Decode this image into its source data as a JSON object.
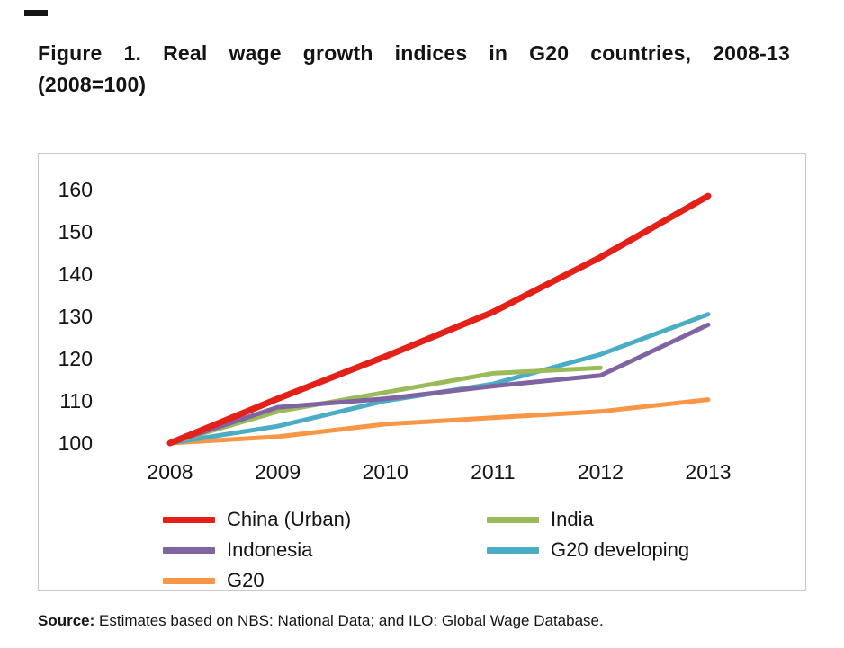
{
  "header": {
    "title_line1": "Figure 1. Real wage growth indices in G20 countries, 2008-13",
    "title_line2": "(2008=100)"
  },
  "chart_data": {
    "type": "line",
    "title": "Figure 1. Real wage growth indices in G20 countries, 2008-13 (2008=100)",
    "x_labels": [
      "2008",
      "2009",
      "2010",
      "2011",
      "2012",
      "2013"
    ],
    "yticks": [
      100,
      110,
      120,
      130,
      140,
      150,
      160
    ],
    "ylim": [
      100,
      160
    ],
    "grid": false,
    "legend_position": "bottom-inside",
    "series": [
      {
        "name": "China (Urban)",
        "color": "#e32119",
        "values": [
          100,
          110.5,
          120.5,
          131,
          144,
          158.5
        ]
      },
      {
        "name": "India",
        "color": "#9bbb59",
        "values": [
          100,
          107.5,
          112,
          116.5,
          117.8,
          null
        ]
      },
      {
        "name": "Indonesia",
        "color": "#8064a2",
        "values": [
          100,
          108.5,
          110.5,
          113.5,
          116,
          128
        ]
      },
      {
        "name": "G20 developing",
        "color": "#4bacc6",
        "values": [
          100,
          104,
          110,
          114,
          121,
          130.5
        ]
      },
      {
        "name": "G20",
        "color": "#f79646",
        "values": [
          100,
          101.5,
          104.5,
          106,
          107.5,
          110.3
        ]
      }
    ],
    "draw_order": [
      4,
      3,
      1,
      2,
      0
    ],
    "line_widths": [
      7,
      5,
      5,
      5,
      5
    ]
  },
  "source": {
    "label": "Source:",
    "text": "Estimates based on NBS: National Data; and ILO: Global Wage Database."
  }
}
